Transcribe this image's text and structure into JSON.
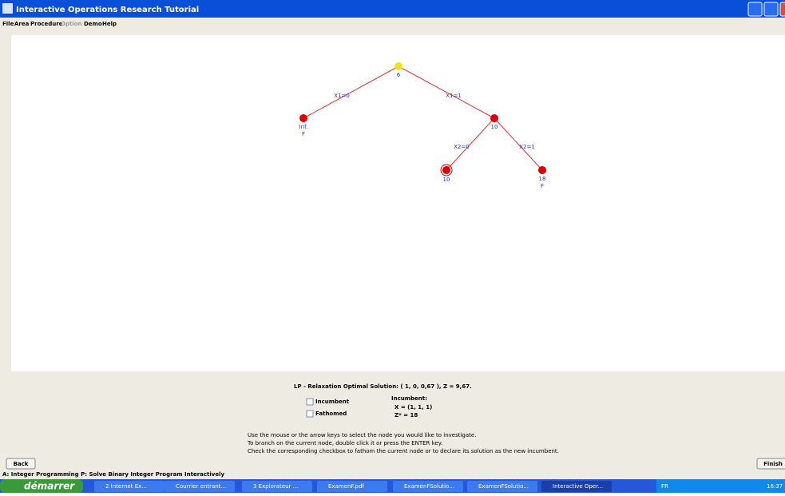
{
  "window": {
    "title": "Interactive Operations Research Tutorial"
  },
  "menu": [
    "File",
    "Area",
    "Procedure",
    "Option",
    "Demo",
    "Help"
  ],
  "tree": {
    "nodes": [
      {
        "label": "6"
      },
      {
        "label": "Inf.",
        "status": "F"
      },
      {
        "label": "10"
      },
      {
        "label": "10"
      },
      {
        "label": "18",
        "status": "F"
      }
    ],
    "edges": [
      {
        "label": "X1=0"
      },
      {
        "label": "X1=1"
      },
      {
        "label": "X2=0"
      },
      {
        "label": "X2=1"
      }
    ]
  },
  "panel": {
    "lp_solution": "LP - Relaxation Optimal Solution: ( 1,  0,  0,67 ),  Z = 9,67.",
    "checkboxes": [
      "Incumbent",
      "Fathomed"
    ],
    "incumbent": {
      "title": "Incumbent:",
      "x": "X = (1,  1,  1)",
      "z": "Z* = 18"
    },
    "instructions": [
      "Use the mouse or the arrow keys to select the node you would like to investigate.",
      "To branch on the current node, double click it or press the ENTER key.",
      "Check the corresponding checkbox to fathom the current node or to declare its solution as the new incumbent."
    ]
  },
  "buttons": {
    "back": "Back",
    "finish": "Finish"
  },
  "status": "A: Integer Programming  P: Solve Binary Integer Program Interactively",
  "taskbar": {
    "start": "démarrer",
    "items": [
      "2 Internet Ex...",
      "Courrier entrant...",
      "3 Explorateur ...",
      "ExamenF.pdf",
      "ExamenFSolutio...",
      "ExamenFSolutio...",
      "Interactive Oper..."
    ],
    "lang": "FR",
    "clock": "16:37"
  }
}
